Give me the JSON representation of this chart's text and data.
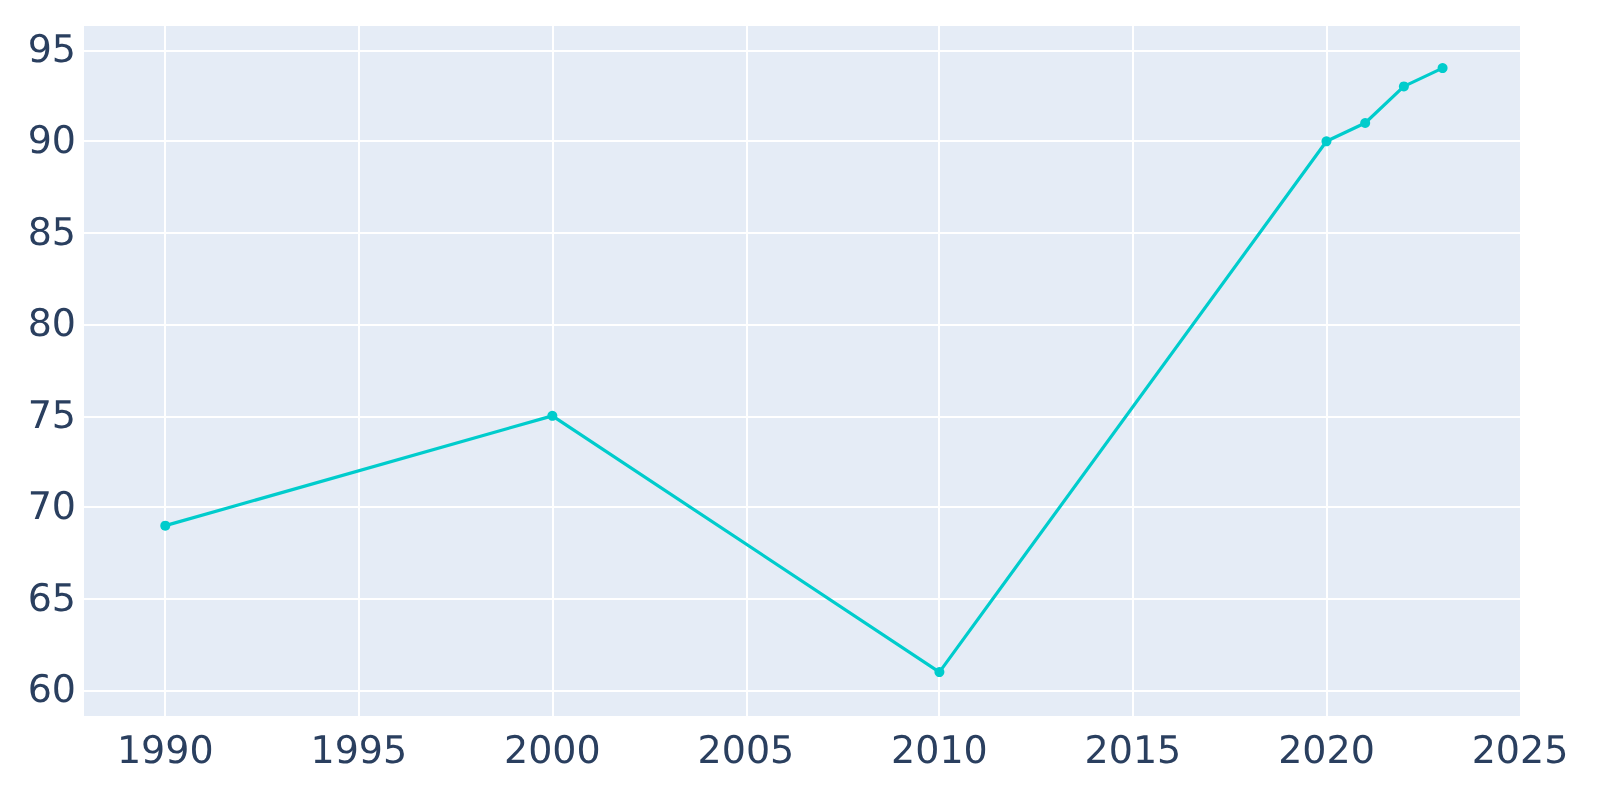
{
  "chart_data": {
    "type": "line",
    "x": [
      1990,
      2000,
      2010,
      2020,
      2021,
      2022,
      2023
    ],
    "series": [
      {
        "color": "#00cccc",
        "values": [
          69,
          75,
          61,
          90,
          91,
          93,
          94
        ]
      }
    ],
    "xlim": [
      1987.9,
      2025
    ],
    "xticks": [
      1990,
      1995,
      2000,
      2005,
      2010,
      2015,
      2020,
      2025
    ],
    "ylim": [
      58.6,
      96.3
    ],
    "yticks": [
      60,
      65,
      70,
      75,
      80,
      85,
      90,
      95
    ],
    "grid": true,
    "marker": "circle",
    "line_style": "solid"
  }
}
